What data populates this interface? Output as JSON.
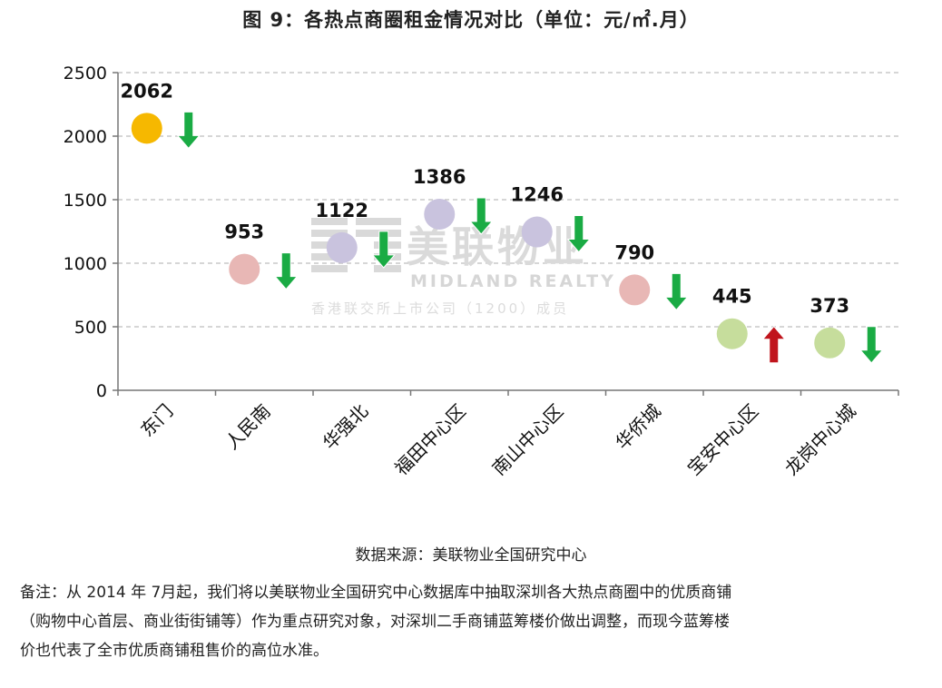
{
  "chart_data": {
    "type": "scatter",
    "title": "图 9：各热点商圈租金情况对比（单位：元/㎡.月）",
    "categories": [
      "东门",
      "人民南",
      "华强北",
      "福田中心区",
      "南山中心区",
      "华侨城",
      "宝安中心区",
      "龙岗中心城"
    ],
    "values": [
      2062,
      953,
      1122,
      1386,
      1246,
      790,
      445,
      373
    ],
    "labels": [
      "2062",
      "953",
      "1122",
      "1386",
      "1246",
      "790",
      "445",
      "373"
    ],
    "trend": [
      "down",
      "down",
      "down",
      "down",
      "down",
      "down",
      "up",
      "down"
    ],
    "point_colors": [
      "#f6b800",
      "#e8b7b5",
      "#c9c3de",
      "#c9c3de",
      "#c9c3de",
      "#e8b7b5",
      "#c6dd9c",
      "#c6dd9c"
    ],
    "trend_colors": {
      "down": "#1aab44",
      "up": "#c0141c"
    },
    "yticks": [
      "0",
      "500",
      "1000",
      "1500",
      "2000",
      "2500"
    ],
    "ylim": [
      0,
      2500
    ],
    "grid": true,
    "xlabel": "",
    "ylabel": ""
  },
  "watermark": {
    "main": "美联物业",
    "sub": "MIDLAND REALTY",
    "tagline": "香港联交所上市公司（1200）成员"
  },
  "source": "数据来源：美联物业全国研究中心",
  "note": {
    "line1": "备注：从 2014 年 7月起，我们将以美联物业全国研究中心数据库中抽取深圳各大热点商圈中的优质商铺",
    "line2": "（购物中心首层、商业街街铺等）作为重点研究对象，对深圳二手商铺蓝筹楼价做出调整，而现今蓝筹楼",
    "line3": "价也代表了全市优质商铺租售价的高位水准。"
  }
}
